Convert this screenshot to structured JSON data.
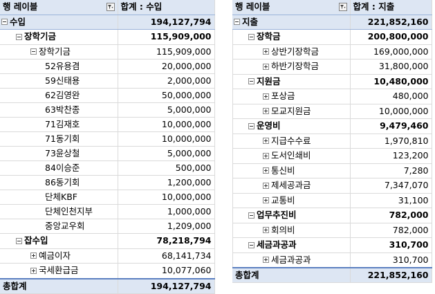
{
  "left": {
    "header": {
      "row_label": "행 레이블",
      "value_label": "합계 : 수입"
    },
    "rows": [
      {
        "level": 0,
        "toggle": "minus",
        "label": "수입",
        "value": "194,127,794"
      },
      {
        "level": 1,
        "toggle": "minus",
        "label": "장학기금",
        "value": "115,909,000"
      },
      {
        "level": 2,
        "toggle": "minus",
        "label": "장학기금",
        "value": "115,909,000"
      },
      {
        "level": 3,
        "toggle": "none",
        "label": "52유용겸",
        "value": "20,000,000"
      },
      {
        "level": 3,
        "toggle": "none",
        "label": "59신태용",
        "value": "2,000,000"
      },
      {
        "level": 3,
        "toggle": "none",
        "label": "62김영완",
        "value": "50,000,000"
      },
      {
        "level": 3,
        "toggle": "none",
        "label": "63박찬종",
        "value": "5,000,000"
      },
      {
        "level": 3,
        "toggle": "none",
        "label": "71김재호",
        "value": "10,000,000"
      },
      {
        "level": 3,
        "toggle": "none",
        "label": "71동기회",
        "value": "10,000,000"
      },
      {
        "level": 3,
        "toggle": "none",
        "label": "73윤상철",
        "value": "5,000,000"
      },
      {
        "level": 3,
        "toggle": "none",
        "label": "84이승준",
        "value": "500,000"
      },
      {
        "level": 3,
        "toggle": "none",
        "label": "86동기회",
        "value": "1,200,000"
      },
      {
        "level": 3,
        "toggle": "none",
        "label": "단체KBF",
        "value": "10,000,000"
      },
      {
        "level": 3,
        "toggle": "none",
        "label": "단체인천지부",
        "value": "1,000,000"
      },
      {
        "level": 3,
        "toggle": "none",
        "label": "중앙교우회",
        "value": "1,209,000"
      },
      {
        "level": 1,
        "toggle": "minus",
        "label": "잡수입",
        "value": "78,218,794"
      },
      {
        "level": 2,
        "toggle": "plus",
        "label": "예금이자",
        "value": "68,141,734"
      },
      {
        "level": 2,
        "toggle": "plus",
        "label": "국세환급금",
        "value": "10,077,060"
      }
    ],
    "total": {
      "label": "총합계",
      "value": "194,127,794"
    }
  },
  "right": {
    "header": {
      "row_label": "행 레이블",
      "value_label": "합계 : 지출"
    },
    "rows": [
      {
        "level": 0,
        "toggle": "minus",
        "label": "지출",
        "value": "221,852,160"
      },
      {
        "level": 1,
        "toggle": "minus",
        "label": "장학금",
        "value": "200,800,000"
      },
      {
        "level": 2,
        "toggle": "plus",
        "label": "상반기장학금",
        "value": "169,000,000"
      },
      {
        "level": 2,
        "toggle": "plus",
        "label": "하반기장학금",
        "value": "31,800,000"
      },
      {
        "level": 1,
        "toggle": "minus",
        "label": "지원금",
        "value": "10,480,000"
      },
      {
        "level": 2,
        "toggle": "plus",
        "label": "포상금",
        "value": "480,000"
      },
      {
        "level": 2,
        "toggle": "plus",
        "label": "모교지원금",
        "value": "10,000,000"
      },
      {
        "level": 1,
        "toggle": "minus",
        "label": "운영비",
        "value": "9,479,460"
      },
      {
        "level": 2,
        "toggle": "plus",
        "label": "지급수수료",
        "value": "1,970,810"
      },
      {
        "level": 2,
        "toggle": "plus",
        "label": "도서인쇄비",
        "value": "123,200"
      },
      {
        "level": 2,
        "toggle": "plus",
        "label": "통신비",
        "value": "7,280"
      },
      {
        "level": 2,
        "toggle": "plus",
        "label": "제세공과금",
        "value": "7,347,070"
      },
      {
        "level": 2,
        "toggle": "plus",
        "label": "교통비",
        "value": "31,100"
      },
      {
        "level": 1,
        "toggle": "minus",
        "label": "업무추진비",
        "value": "782,000"
      },
      {
        "level": 2,
        "toggle": "plus",
        "label": "회의비",
        "value": "782,000"
      },
      {
        "level": 1,
        "toggle": "minus",
        "label": "세금과공과",
        "value": "310,700"
      },
      {
        "level": 2,
        "toggle": "plus",
        "label": "세금과공과",
        "value": "310,700"
      }
    ],
    "total": {
      "label": "총합계",
      "value": "221,852,160"
    }
  },
  "colors": {
    "header_bg": "#dde6f3",
    "header_rule": "#9bb3d9",
    "total_rule": "#5b7fc0",
    "gridline": "#dadada"
  }
}
